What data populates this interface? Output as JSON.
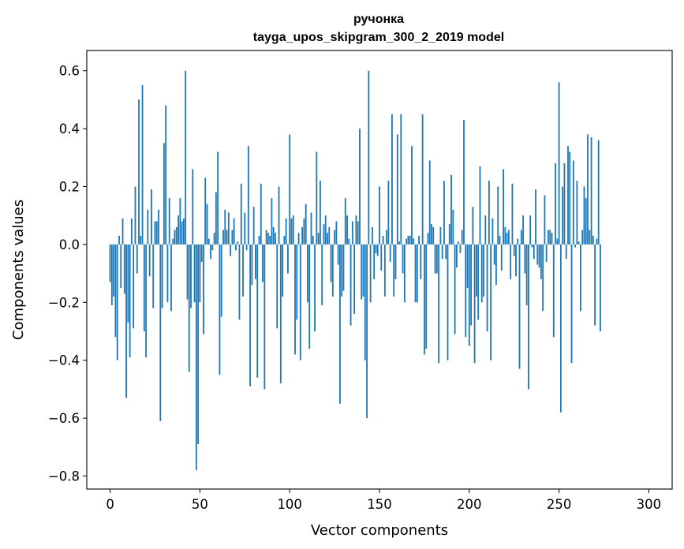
{
  "chart_data": {
    "type": "bar",
    "title_lines": [
      "ручонка",
      "tayga_upos_skipgram_300_2_2019 model"
    ],
    "xlabel": "Vector components",
    "ylabel": "Components values",
    "xlim": [
      -13,
      313
    ],
    "ylim": [
      -0.845,
      0.67
    ],
    "xticks": [
      0,
      50,
      100,
      150,
      200,
      250,
      300
    ],
    "xtick_labels": [
      "0",
      "50",
      "100",
      "150",
      "200",
      "250",
      "300"
    ],
    "yticks": [
      -0.8,
      -0.6,
      -0.4,
      -0.2,
      0.0,
      0.2,
      0.4,
      0.6
    ],
    "ytick_labels": [
      "−0.8",
      "−0.6",
      "−0.4",
      "−0.2",
      "0.0",
      "0.2",
      "0.4",
      "0.6"
    ],
    "bar_color": "#1f77b4",
    "series": [
      {
        "name": "ручонка",
        "values": [
          -0.13,
          -0.21,
          -0.18,
          -0.32,
          -0.4,
          0.03,
          -0.15,
          0.09,
          -0.17,
          -0.53,
          -0.27,
          -0.39,
          0.09,
          -0.29,
          0.2,
          -0.1,
          0.5,
          0.03,
          0.55,
          -0.3,
          -0.39,
          0.12,
          -0.11,
          0.19,
          -0.22,
          0.08,
          0.08,
          0.12,
          -0.61,
          -0.22,
          0.35,
          0.48,
          -0.2,
          0.16,
          -0.23,
          0.02,
          0.05,
          0.06,
          0.1,
          0.16,
          0.08,
          0.09,
          0.6,
          -0.19,
          -0.44,
          -0.22,
          0.26,
          -0.2,
          -0.78,
          -0.69,
          -0.2,
          -0.06,
          -0.31,
          0.23,
          0.14,
          0.02,
          -0.05,
          -0.02,
          0.04,
          0.18,
          0.32,
          -0.45,
          -0.25,
          0.05,
          0.12,
          0.05,
          0.11,
          -0.04,
          0.05,
          0.09,
          -0.02,
          0.01,
          -0.26,
          0.21,
          -0.18,
          0.11,
          -0.02,
          0.34,
          -0.49,
          -0.14,
          0.13,
          -0.12,
          -0.46,
          0.03,
          0.21,
          -0.13,
          -0.5,
          0.05,
          0.04,
          0.03,
          0.16,
          0.06,
          0.04,
          -0.29,
          0.2,
          -0.48,
          -0.18,
          0.03,
          0.09,
          -0.1,
          0.38,
          0.09,
          0.1,
          -0.38,
          -0.26,
          0.04,
          -0.4,
          0.06,
          0.09,
          0.14,
          -0.2,
          -0.36,
          0.11,
          0.03,
          -0.3,
          0.32,
          0.04,
          0.22,
          -0.21,
          0.07,
          0.1,
          0.04,
          0.06,
          -0.13,
          -0.18,
          0.05,
          0.08,
          -0.07,
          -0.55,
          -0.18,
          -0.16,
          0.16,
          0.1,
          0.02,
          -0.28,
          0.08,
          -0.24,
          0.1,
          0.08,
          0.4,
          -0.19,
          -0.18,
          -0.4,
          -0.6,
          0.6,
          -0.2,
          0.06,
          -0.12,
          -0.03,
          -0.04,
          0.2,
          -0.09,
          0.03,
          -0.18,
          0.05,
          0.22,
          -0.06,
          0.45,
          -0.18,
          -0.12,
          0.38,
          0.01,
          0.45,
          -0.1,
          -0.2,
          0.02,
          0.03,
          0.03,
          0.34,
          0.02,
          -0.2,
          -0.2,
          0.03,
          -0.12,
          0.45,
          -0.38,
          -0.36,
          0.04,
          0.29,
          0.07,
          0.06,
          -0.1,
          -0.1,
          -0.41,
          0.06,
          -0.05,
          0.22,
          -0.05,
          -0.4,
          0.07,
          0.24,
          0.12,
          -0.31,
          -0.08,
          0.01,
          -0.03,
          0.05,
          0.43,
          -0.32,
          -0.15,
          -0.35,
          -0.28,
          0.13,
          -0.41,
          -0.18,
          -0.26,
          0.27,
          -0.2,
          -0.18,
          0.1,
          -0.3,
          0.22,
          -0.4,
          0.09,
          -0.07,
          -0.14,
          0.2,
          0.03,
          -0.09,
          0.26,
          0.06,
          0.04,
          0.05,
          -0.12,
          0.21,
          -0.04,
          -0.11,
          0.02,
          -0.43,
          0.05,
          0.1,
          -0.1,
          -0.21,
          -0.5,
          0.1,
          -0.01,
          -0.05,
          0.19,
          -0.07,
          -0.08,
          -0.12,
          -0.23,
          0.17,
          -0.06,
          0.05,
          0.05,
          0.04,
          -0.32,
          0.28,
          0.02,
          0.56,
          -0.58,
          0.2,
          0.28,
          -0.05,
          0.34,
          0.32,
          -0.41,
          0.29,
          -0.01,
          0.22,
          0.01,
          -0.23,
          0.05,
          0.2,
          0.16,
          0.38,
          0.05,
          0.37,
          0.03,
          -0.28,
          0.02,
          0.36,
          -0.3
        ]
      }
    ]
  }
}
